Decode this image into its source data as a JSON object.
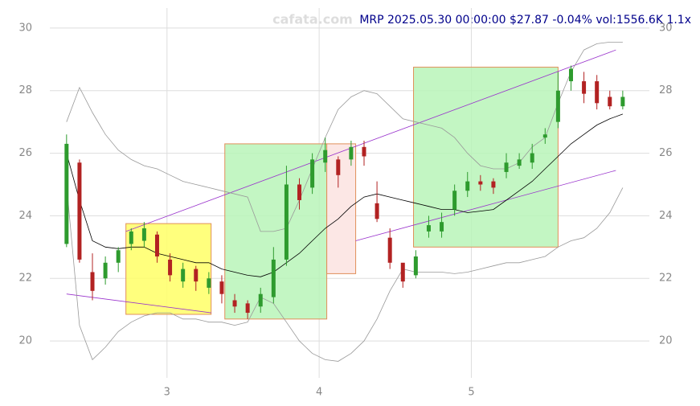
{
  "chart_data": {
    "type": "candlestick",
    "watermark": "cafata.com",
    "title": "MRP 2025.05.30 00:00:00 $27.87 -0.04% vol:1556.6K 1.1x",
    "xlim": [
      2.23,
      6.17
    ],
    "xticks": [
      3,
      4,
      5
    ],
    "ylim": [
      18.82,
      30.64
    ],
    "yticks": [
      20,
      22,
      24,
      26,
      28,
      30
    ],
    "grid": true,
    "up_color": "#2e9b2e",
    "down_color": "#b22222",
    "x": [
      2.34,
      2.425,
      2.51,
      2.595,
      2.68,
      2.765,
      2.85,
      2.935,
      3.02,
      3.105,
      3.19,
      3.275,
      3.36,
      3.445,
      3.53,
      3.615,
      3.7,
      3.785,
      3.87,
      3.955,
      4.04,
      4.125,
      4.21,
      4.295,
      4.38,
      4.465,
      4.55,
      4.635,
      4.72,
      4.805,
      4.89,
      4.975,
      5.06,
      5.145,
      5.23,
      5.315,
      5.4,
      5.485,
      5.57,
      5.655,
      5.74,
      5.825,
      5.91,
      5.995
    ],
    "open": [
      23.1,
      25.7,
      22.2,
      22.0,
      22.5,
      23.1,
      23.2,
      23.4,
      22.6,
      21.9,
      22.3,
      21.7,
      21.9,
      21.3,
      21.2,
      21.1,
      21.4,
      22.6,
      25.0,
      24.9,
      25.7,
      25.8,
      25.8,
      26.2,
      24.4,
      23.3,
      22.5,
      22.1,
      23.5,
      23.5,
      24.2,
      24.8,
      25.1,
      25.1,
      25.4,
      25.6,
      25.7,
      26.5,
      27.0,
      28.3,
      28.3,
      28.3,
      27.8,
      27.5
    ],
    "high": [
      26.6,
      25.8,
      22.8,
      22.7,
      23.0,
      23.6,
      23.8,
      23.5,
      22.8,
      22.5,
      22.4,
      22.2,
      22.1,
      21.5,
      21.3,
      21.7,
      23.0,
      25.6,
      25.2,
      26.0,
      26.5,
      25.9,
      26.4,
      26.4,
      25.1,
      23.6,
      22.4,
      22.9,
      24.0,
      24.1,
      25.0,
      25.4,
      25.3,
      25.2,
      26.0,
      26.0,
      26.3,
      26.8,
      28.6,
      28.8,
      28.6,
      28.5,
      28.0,
      28.0
    ],
    "low": [
      23.0,
      22.5,
      21.3,
      21.8,
      22.2,
      22.9,
      23.0,
      22.5,
      21.9,
      21.7,
      21.6,
      21.5,
      21.2,
      20.9,
      20.7,
      20.9,
      21.2,
      22.4,
      24.2,
      24.7,
      25.4,
      24.9,
      25.6,
      25.6,
      23.8,
      22.3,
      21.7,
      22.0,
      23.3,
      23.3,
      24.0,
      24.6,
      24.8,
      24.7,
      25.2,
      25.5,
      25.5,
      26.3,
      26.8,
      28.0,
      27.6,
      27.4,
      27.4,
      27.4
    ],
    "close": [
      26.3,
      22.6,
      21.6,
      22.5,
      22.9,
      23.5,
      23.6,
      22.7,
      22.1,
      22.3,
      21.9,
      22.0,
      21.5,
      21.1,
      20.9,
      21.5,
      22.6,
      25.0,
      24.5,
      25.8,
      26.1,
      25.3,
      26.2,
      25.9,
      23.9,
      22.5,
      21.9,
      22.7,
      23.7,
      23.8,
      24.8,
      25.1,
      25.0,
      24.9,
      25.7,
      25.8,
      26.0,
      26.6,
      28.0,
      28.7,
      27.9,
      27.6,
      27.5,
      27.8
    ],
    "lines": [
      {
        "color": "#000000",
        "values": [
          26,
          24.5,
          23.2,
          23.0,
          22.95,
          23.0,
          23.0,
          22.8,
          22.7,
          22.6,
          22.5,
          22.5,
          22.3,
          22.2,
          22.1,
          22.05,
          22.2,
          22.5,
          22.8,
          23.2,
          23.6,
          23.9,
          24.3,
          24.6,
          24.7,
          24.6,
          24.5,
          24.4,
          24.3,
          24.2,
          24.2,
          24.1,
          24.15,
          24.2,
          24.5,
          24.8,
          25.1,
          25.5,
          25.9,
          26.3,
          26.6,
          26.9,
          27.1,
          27.25
        ]
      },
      {
        "color": "#999999",
        "values": [
          27,
          28.1,
          27.3,
          26.6,
          26.1,
          25.8,
          25.6,
          25.5,
          25.3,
          25.1,
          25.0,
          24.9,
          24.8,
          24.7,
          24.6,
          23.5,
          23.5,
          23.6,
          24.5,
          25.5,
          26.5,
          27.4,
          27.8,
          28.0,
          27.9,
          27.5,
          27.1,
          27.0,
          26.9,
          26.8,
          26.5,
          26.0,
          25.6,
          25.5,
          25.5,
          25.7,
          26.2,
          26.5,
          27.6,
          28.6,
          29.3,
          29.5,
          29.55,
          29.55
        ]
      },
      {
        "color": "#999999",
        "values": [
          25,
          20.5,
          19.4,
          19.8,
          20.3,
          20.6,
          20.8,
          20.9,
          20.9,
          20.7,
          20.7,
          20.6,
          20.6,
          20.5,
          20.6,
          21.4,
          21.2,
          20.6,
          20.0,
          19.6,
          19.4,
          19.35,
          19.6,
          20.0,
          20.7,
          21.6,
          22.3,
          22.2,
          22.2,
          22.2,
          22.15,
          22.2,
          22.3,
          22.4,
          22.5,
          22.5,
          22.6,
          22.7,
          23.0,
          23.2,
          23.3,
          23.6,
          24.1,
          24.9
        ]
      }
    ],
    "zones": [
      {
        "color": "#ffff66",
        "x": [
          2.73,
          3.29
        ],
        "y": [
          20.85,
          23.75
        ]
      },
      {
        "color": "#b8f5b8",
        "x": [
          3.38,
          4.05
        ],
        "y": [
          20.7,
          26.3
        ]
      },
      {
        "color": "#fbe3e0",
        "x": [
          4.05,
          4.24
        ],
        "y": [
          22.15,
          26.3
        ]
      },
      {
        "color": "#b8f5b8",
        "x": [
          4.62,
          5.57
        ],
        "y": [
          23.0,
          28.75
        ]
      }
    ],
    "trendlines": [
      {
        "color": "#9932cc",
        "x": [
          2.73,
          5.95
        ],
        "y": [
          23.5,
          29.3
        ]
      },
      {
        "color": "#9932cc",
        "x": [
          2.34,
          3.29
        ],
        "y": [
          21.5,
          20.9
        ]
      },
      {
        "color": "#9932cc",
        "x": [
          4.24,
          5.95
        ],
        "y": [
          23.2,
          25.45
        ]
      }
    ]
  }
}
